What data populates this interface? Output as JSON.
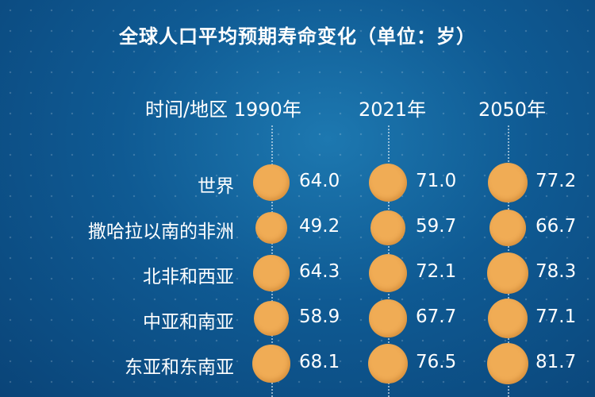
{
  "chart_data": {
    "type": "table",
    "title": "全球人口平均预期寿命变化（单位：岁）",
    "corner_label": "时间/地区",
    "columns": [
      "1990年",
      "2021年",
      "2050年"
    ],
    "rows": [
      {
        "region": "世界",
        "values": [
          64.0,
          71.0,
          77.2
        ],
        "labels": [
          "64.0",
          "71.0",
          "77.2"
        ]
      },
      {
        "region": "撒哈拉以南的非洲",
        "values": [
          49.2,
          59.7,
          66.7
        ],
        "labels": [
          "49.2",
          "59.7",
          "66.7"
        ]
      },
      {
        "region": "北非和西亚",
        "values": [
          64.3,
          72.1,
          78.3
        ],
        "labels": [
          "64.3",
          "72.1",
          "78.3"
        ]
      },
      {
        "region": "中亚和南亚",
        "values": [
          58.9,
          67.7,
          77.1
        ],
        "labels": [
          "58.9",
          "67.7",
          "77.1"
        ]
      },
      {
        "region": "东亚和东南亚",
        "values": [
          68.1,
          76.5,
          81.7
        ],
        "labels": [
          "68.1",
          "76.5",
          "81.7"
        ]
      }
    ]
  },
  "colors": {
    "background": "#0d5189",
    "dot": "#f0ac55",
    "text": "#ffffff"
  }
}
